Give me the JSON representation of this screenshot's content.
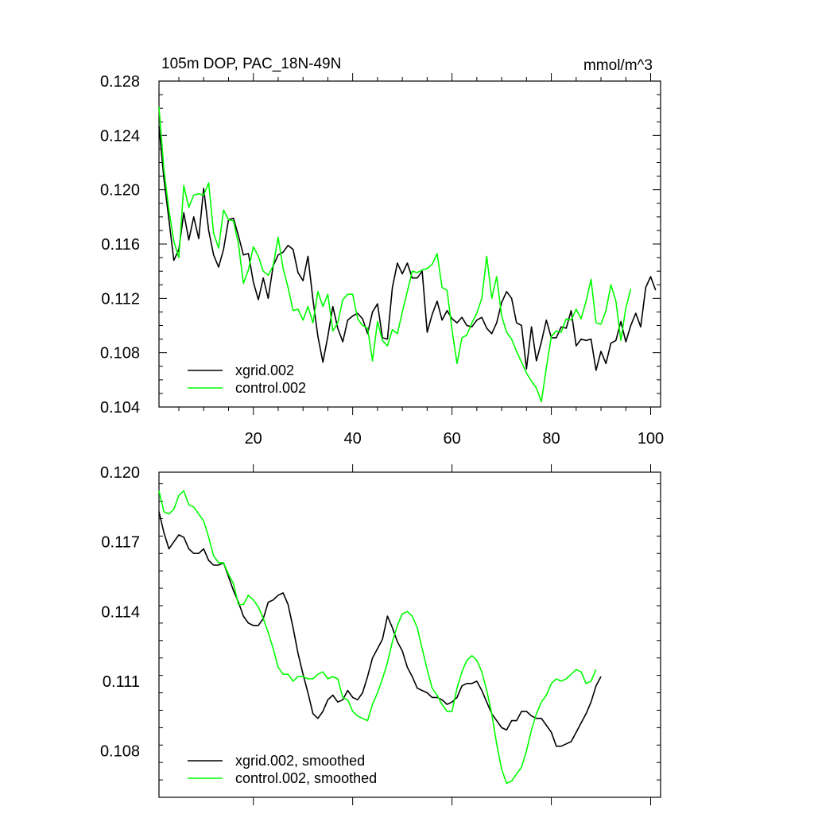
{
  "colors": {
    "xgrid": "#000000",
    "control": "#00ff00"
  },
  "chart_data": [
    {
      "type": "line",
      "title": "105m DOP, PAC_18N-49N",
      "units": "mmol/m^3",
      "xlim": [
        1,
        102
      ],
      "ylim": [
        0.104,
        0.128
      ],
      "yticks": [
        "0.104",
        "0.108",
        "0.112",
        "0.116",
        "0.120",
        "0.124",
        "0.128"
      ],
      "xticks": [
        "20",
        "40",
        "60",
        "80",
        "100"
      ],
      "legend_position": "bottom-left",
      "series": [
        {
          "name": "xgrid.002",
          "color_key": "xgrid",
          "values": [
            0.1247,
            0.1208,
            0.1178,
            0.1148,
            0.1156,
            0.1183,
            0.1163,
            0.118,
            0.1164,
            0.1201,
            0.117,
            0.1152,
            0.1143,
            0.1156,
            0.1178,
            0.1179,
            0.1166,
            0.1152,
            0.1153,
            0.1132,
            0.1119,
            0.1135,
            0.112,
            0.1144,
            0.1152,
            0.1154,
            0.1159,
            0.1156,
            0.1139,
            0.1133,
            0.1151,
            0.1119,
            0.1092,
            0.1073,
            0.1092,
            0.1114,
            0.1098,
            0.1088,
            0.1104,
            0.1107,
            0.1109,
            0.1105,
            0.1094,
            0.111,
            0.1116,
            0.1091,
            0.109,
            0.1128,
            0.1146,
            0.1138,
            0.1146,
            0.1135,
            0.1135,
            0.114,
            0.1095,
            0.1108,
            0.1118,
            0.1104,
            0.1111,
            0.1105,
            0.1102,
            0.1106,
            0.11,
            0.1099,
            0.1104,
            0.1106,
            0.1098,
            0.1094,
            0.1102,
            0.1117,
            0.1125,
            0.112,
            0.1102,
            0.11,
            0.1068,
            0.1099,
            0.1074,
            0.1088,
            0.1104,
            0.1091,
            0.1091,
            0.1099,
            0.1098,
            0.1111,
            0.1085,
            0.109,
            0.1089,
            0.109,
            0.1067,
            0.1081,
            0.1072,
            0.1087,
            0.1089,
            0.1103,
            0.1088,
            0.11,
            0.1109,
            0.1099,
            0.1128,
            0.1136,
            0.1126
          ]
        },
        {
          "name": "control.002",
          "color_key": "control",
          "values": [
            0.1261,
            0.1215,
            0.1185,
            0.1162,
            0.115,
            0.1203,
            0.1187,
            0.1196,
            0.1197,
            0.1196,
            0.1205,
            0.1168,
            0.1157,
            0.1185,
            0.1178,
            0.1177,
            0.116,
            0.1131,
            0.1141,
            0.1158,
            0.1151,
            0.114,
            0.1137,
            0.1144,
            0.1165,
            0.1142,
            0.1128,
            0.1111,
            0.1112,
            0.1104,
            0.1114,
            0.1102,
            0.1125,
            0.1114,
            0.1123,
            0.1096,
            0.1102,
            0.1119,
            0.1123,
            0.1123,
            0.1105,
            0.11,
            0.1098,
            0.1074,
            0.1103,
            0.1089,
            0.1085,
            0.1097,
            0.1094,
            0.111,
            0.1125,
            0.114,
            0.1139,
            0.1141,
            0.1142,
            0.1145,
            0.1153,
            0.1128,
            0.1126,
            0.1097,
            0.1072,
            0.1091,
            0.1093,
            0.1102,
            0.1109,
            0.112,
            0.1151,
            0.112,
            0.1136,
            0.1107,
            0.1095,
            0.109,
            0.1081,
            0.1073,
            0.1065,
            0.1059,
            0.1054,
            0.1044,
            0.1069,
            0.1092,
            0.1096,
            0.1095,
            0.1105,
            0.1104,
            0.1112,
            0.1105,
            0.1118,
            0.1134,
            0.1102,
            0.1101,
            0.1111,
            0.113,
            0.1118,
            0.1089,
            0.1113,
            0.1127
          ]
        }
      ]
    },
    {
      "type": "line",
      "title": "",
      "xlim": [
        1,
        102
      ],
      "ylim": [
        0.106,
        0.12
      ],
      "yticks": [
        "0.108",
        "0.111",
        "0.114",
        "0.117",
        "0.120"
      ],
      "xticks": [],
      "legend_position": "bottom-left",
      "series": [
        {
          "name": "xgrid.002, smoothed",
          "color_key": "xgrid",
          "values": [
            0.1183,
            0.1174,
            0.1167,
            0.117,
            0.1173,
            0.1172,
            0.1167,
            0.1165,
            0.1165,
            0.1167,
            0.1162,
            0.116,
            0.116,
            0.1161,
            0.1155,
            0.1149,
            0.1144,
            0.1138,
            0.1135,
            0.1134,
            0.1134,
            0.1137,
            0.1144,
            0.1145,
            0.1147,
            0.1148,
            0.1143,
            0.1133,
            0.1122,
            0.1113,
            0.1105,
            0.1096,
            0.1094,
            0.1097,
            0.1102,
            0.1104,
            0.1101,
            0.1102,
            0.1106,
            0.1103,
            0.1102,
            0.1105,
            0.1112,
            0.112,
            0.1124,
            0.1128,
            0.1138,
            0.1133,
            0.1127,
            0.1123,
            0.1116,
            0.1112,
            0.1107,
            0.1106,
            0.1105,
            0.1103,
            0.1103,
            0.1102,
            0.11,
            0.1101,
            0.1103,
            0.1108,
            0.1109,
            0.1109,
            0.111,
            0.1106,
            0.1101,
            0.1096,
            0.1093,
            0.109,
            0.1089,
            0.1093,
            0.1093,
            0.1097,
            0.1097,
            0.1095,
            0.1094,
            0.1094,
            0.1091,
            0.1088,
            0.1082,
            0.1082,
            0.1083,
            0.1084,
            0.1088,
            0.1092,
            0.1096,
            0.1101,
            0.1108,
            0.1112
          ]
        },
        {
          "name": "control.002, smoothed",
          "color_key": "control",
          "values": [
            0.1192,
            0.1183,
            0.1182,
            0.1184,
            0.119,
            0.1192,
            0.1186,
            0.1185,
            0.1182,
            0.1179,
            0.1172,
            0.1164,
            0.1161,
            0.1161,
            0.1156,
            0.1152,
            0.1143,
            0.1143,
            0.1147,
            0.1145,
            0.1142,
            0.1137,
            0.1131,
            0.1124,
            0.1116,
            0.1113,
            0.1113,
            0.111,
            0.1112,
            0.1112,
            0.1111,
            0.1111,
            0.1113,
            0.1114,
            0.1111,
            0.1112,
            0.1111,
            0.1103,
            0.1102,
            0.1097,
            0.1095,
            0.1094,
            0.1093,
            0.11,
            0.1105,
            0.1111,
            0.1118,
            0.1127,
            0.1134,
            0.1139,
            0.114,
            0.1138,
            0.1133,
            0.1124,
            0.1115,
            0.1107,
            0.1104,
            0.11,
            0.1097,
            0.1097,
            0.1107,
            0.1114,
            0.1119,
            0.1121,
            0.1119,
            0.1114,
            0.1106,
            0.1096,
            0.1083,
            0.1072,
            0.1066,
            0.1067,
            0.107,
            0.1073,
            0.108,
            0.1089,
            0.1096,
            0.1101,
            0.1104,
            0.1109,
            0.1111,
            0.111,
            0.1111,
            0.1113,
            0.1115,
            0.1114,
            0.1109,
            0.111,
            0.1115
          ]
        }
      ]
    }
  ]
}
